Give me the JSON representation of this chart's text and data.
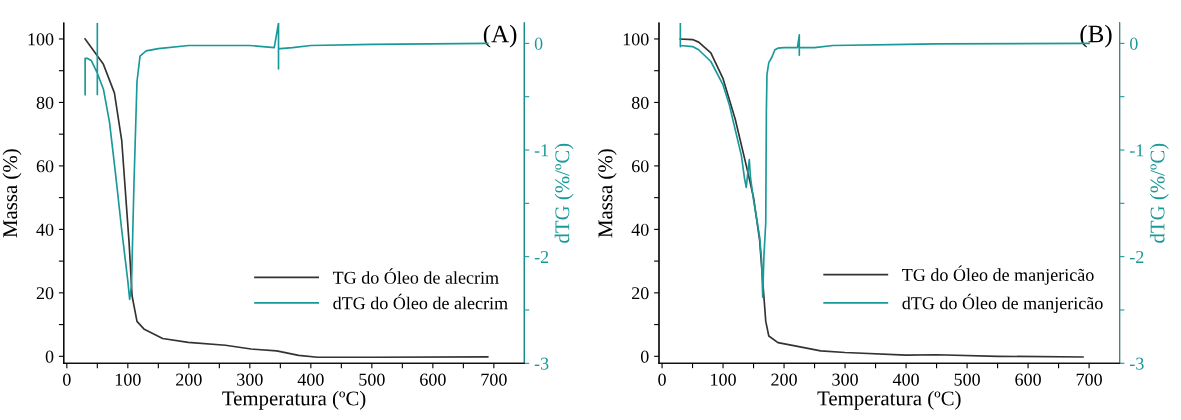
{
  "chart_data": [
    {
      "type": "line",
      "xlabel": "Temperatura (ºC)",
      "ylabel": "Massa (%)",
      "y2label": "dTG (%/ºC)",
      "annotations": [
        "(A)"
      ],
      "xlim": [
        -5,
        750
      ],
      "ylim": [
        -2.2,
        105
      ],
      "y2lim": [
        -3,
        0.19
      ],
      "xticks": [
        0,
        {
          "value": 50,
          "label": null
        },
        100,
        {
          "value": 150,
          "label": null
        },
        200,
        {
          "value": 250,
          "label": null
        },
        300,
        {
          "value": 350,
          "label": null
        },
        400,
        {
          "value": 450,
          "label": null
        },
        500,
        {
          "value": 550,
          "label": null
        },
        600,
        {
          "value": 650,
          "label": null
        },
        700
      ],
      "yticks": [
        0,
        {
          "value": 10,
          "label": null
        },
        20,
        {
          "value": 30,
          "label": null
        },
        40,
        {
          "value": 50,
          "label": null
        },
        60,
        {
          "value": 70,
          "label": null
        },
        80,
        {
          "value": 90,
          "label": null
        },
        100
      ],
      "y2ticks": [
        {
          "value": -3,
          "label": "-3"
        },
        {
          "value": -2.5,
          "label": null
        },
        {
          "value": -2,
          "label": "-2"
        },
        {
          "value": -1.5,
          "label": null
        },
        {
          "value": -1,
          "label": "-1"
        },
        {
          "value": -0.5,
          "label": null
        },
        {
          "value": 0,
          "label": "0"
        }
      ],
      "legend": "bottom right",
      "grid": false,
      "series": [
        {
          "name": "TG do Óleo de alecrim",
          "color": "#333333",
          "x": [
            30,
            60,
            78,
            90,
            102,
            107,
            115,
            127,
            157,
            199,
            260,
            302,
            344,
            380,
            411,
            500,
            690
          ],
          "values": [
            100,
            92,
            83,
            68,
            36,
            19,
            11,
            8.5,
            5.6,
            4.4,
            3.5,
            2.3,
            1.7,
            0.3,
            -0.3,
            -0.3,
            -0.2
          ]
        },
        {
          "name": "dTG do Óleo de alecrim",
          "color": "#199999",
          "axis": "y2",
          "x": [
            30,
            30,
            30,
            33,
            40,
            50,
            50,
            50,
            50,
            60,
            70,
            80,
            90,
            100,
            103,
            106,
            110,
            115,
            120,
            130,
            150,
            200,
            300,
            340,
            347,
            347,
            347,
            350,
            370,
            400,
            500,
            690
          ],
          "values": [
            -0.48,
            -0.14,
            -0.14,
            -0.14,
            -0.16,
            -0.28,
            0.19,
            -0.48,
            -0.28,
            -0.43,
            -0.74,
            -1.23,
            -1.75,
            -2.23,
            -2.4,
            -2.27,
            -1.33,
            -0.36,
            -0.12,
            -0.07,
            -0.05,
            -0.02,
            -0.02,
            -0.04,
            0.19,
            -0.24,
            -0.05,
            -0.05,
            -0.04,
            -0.02,
            -0.01,
            0
          ]
        }
      ]
    },
    {
      "type": "line",
      "xlabel": "Temperatura (ºC)",
      "ylabel": "Massa (%)",
      "y2label": "dTG (%/ºC)",
      "annotations": [
        "(B)"
      ],
      "xlim": [
        -5,
        750
      ],
      "ylim": [
        -2.2,
        105
      ],
      "y2lim": [
        -3,
        0.19
      ],
      "xticks": [
        0,
        {
          "value": 50,
          "label": null
        },
        100,
        {
          "value": 150,
          "label": null
        },
        200,
        {
          "value": 250,
          "label": null
        },
        300,
        {
          "value": 350,
          "label": null
        },
        400,
        {
          "value": 450,
          "label": null
        },
        500,
        {
          "value": 550,
          "label": null
        },
        600,
        {
          "value": 650,
          "label": null
        },
        700
      ],
      "yticks": [
        0,
        {
          "value": 10,
          "label": null
        },
        20,
        {
          "value": 30,
          "label": null
        },
        40,
        {
          "value": 50,
          "label": null
        },
        60,
        {
          "value": 70,
          "label": null
        },
        80,
        {
          "value": 90,
          "label": null
        },
        100
      ],
      "y2ticks": [
        {
          "value": -3,
          "label": "-3"
        },
        {
          "value": -2.5,
          "label": null
        },
        {
          "value": -2,
          "label": "-2"
        },
        {
          "value": -1.5,
          "label": null
        },
        {
          "value": -1,
          "label": "-1"
        },
        {
          "value": -0.5,
          "label": null
        },
        {
          "value": 0,
          "label": "0"
        }
      ],
      "legend": "bottom right",
      "grid": false,
      "series": [
        {
          "name": "TG do Óleo de manjericão",
          "color": "#333333",
          "x": [
            30,
            50,
            60,
            80,
            100,
            120,
            140,
            150,
            160,
            165,
            170,
            175,
            190,
            220,
            260,
            300,
            400,
            450,
            550,
            690
          ],
          "values": [
            100,
            99.8,
            99,
            95.6,
            87.5,
            74.7,
            58.5,
            50,
            36.5,
            23.8,
            11,
            6.4,
            4.3,
            3.2,
            1.7,
            1.2,
            0.4,
            0.5,
            0,
            -0.2
          ]
        },
        {
          "name": "dTG do Óleo de manjericão",
          "color": "#199999",
          "axis": "y2",
          "x": [
            30,
            30,
            30,
            50,
            60,
            80,
            100,
            110,
            120,
            130,
            135,
            138,
            143,
            145,
            150,
            155,
            160,
            163,
            165,
            167,
            170,
            171,
            172,
            175,
            180,
            185,
            190,
            200,
            222,
            225,
            225,
            225,
            250,
            280,
            400,
            450,
            700
          ],
          "values": [
            0.19,
            -0.03,
            -0.02,
            -0.03,
            -0.06,
            -0.17,
            -0.39,
            -0.57,
            -0.81,
            -1.05,
            -1.26,
            -1.35,
            -1.09,
            -1.26,
            -1.47,
            -1.64,
            -1.82,
            -2.02,
            -2.38,
            -1.99,
            -1.68,
            -0.64,
            -0.29,
            -0.18,
            -0.13,
            -0.06,
            -0.045,
            -0.04,
            -0.04,
            0.08,
            -0.11,
            -0.04,
            -0.04,
            -0.02,
            -0.01,
            -0.005,
            0
          ]
        }
      ]
    }
  ]
}
